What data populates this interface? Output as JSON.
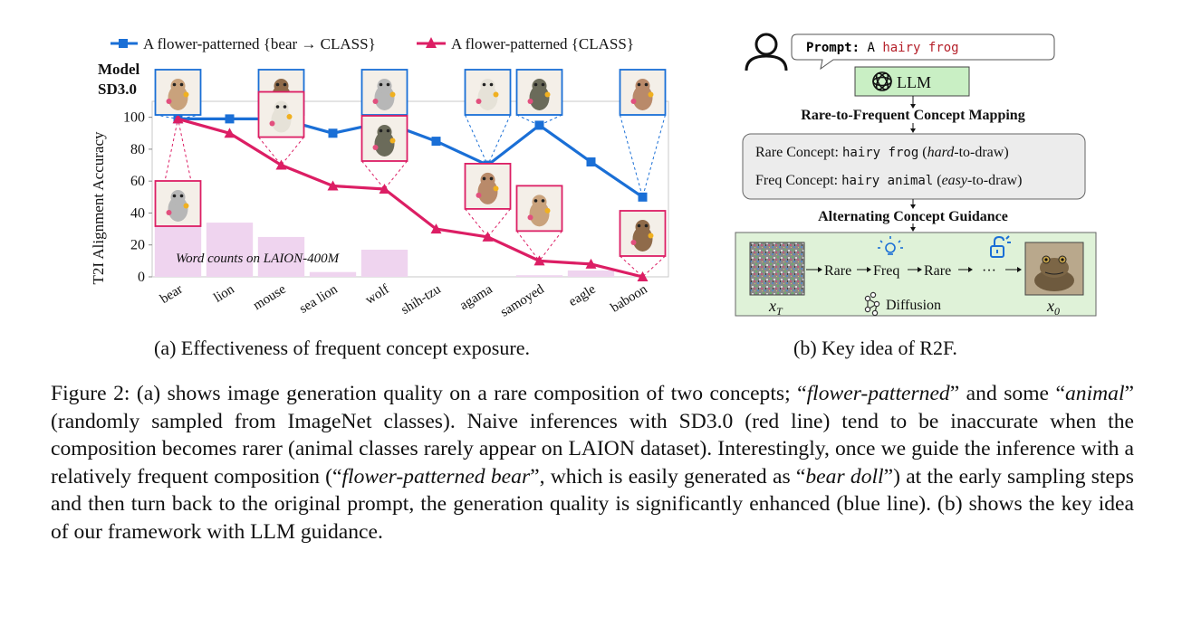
{
  "figure_a": {
    "legend": [
      {
        "label": "A flower-patterned {bear → CLASS}",
        "color": "#1a6fd6",
        "marker": "square"
      },
      {
        "label": "A flower-patterned {CLASS}",
        "color": "#dc1e64",
        "marker": "triangle"
      }
    ],
    "model_label_line1": "Model",
    "model_label_line2": "SD3.0",
    "bar_annotation": "Word counts on LAION-400M",
    "subcaption": "(a) Effectiveness of frequent concept exposure."
  },
  "chart_data": {
    "type": "line",
    "categories": [
      "bear",
      "lion",
      "mouse",
      "sea lion",
      "wolf",
      "shih-tzu",
      "agama",
      "samoyed",
      "eagle",
      "baboon"
    ],
    "ylabel": "T2I Alignment Accuracy",
    "ylim": [
      0,
      110
    ],
    "yticks": [
      0,
      20,
      40,
      60,
      80,
      100
    ],
    "series": [
      {
        "name": "A flower-patterned {bear → CLASS}",
        "color": "#1a6fd6",
        "values": [
          99,
          99,
          99,
          90,
          97,
          85,
          70,
          95,
          72,
          50
        ]
      },
      {
        "name": "A flower-patterned {CLASS}",
        "color": "#dc1e64",
        "values": [
          99,
          90,
          70,
          57,
          55,
          30,
          25,
          10,
          8,
          0
        ]
      }
    ],
    "word_count_bars": {
      "color": "#efd4ef",
      "values": [
        34,
        34,
        25,
        3,
        17,
        0,
        0,
        1,
        4,
        0
      ]
    },
    "blue_thumbnail_icons": [
      "bear-doll-icon",
      "flower-lion-icon",
      "flower-mouse-icon",
      "fox-icon",
      "flower-wolf-icon",
      "lizard-icon",
      "samoyed-icon",
      "monkey-icon"
    ],
    "pink_thumbnail_icons": [
      "bear-doll-icon",
      "mouse-photo-icon",
      "flower-wolf-icon",
      "lizard-photo-icon",
      "samoyed-photo-icon",
      "baboon-photo-icon"
    ]
  },
  "figure_b": {
    "prompt_label": "Prompt:",
    "prompt_prefix": "A",
    "prompt_object": "hairy frog",
    "llm_label": "LLM",
    "mapping_title": "Rare-to-Frequent Concept Mapping",
    "rare_label": "Rare Concept:",
    "rare_concept": "hairy frog",
    "rare_hint_pre": "(",
    "rare_hint_em": "hard",
    "rare_hint_post": "-to-draw)",
    "freq_label": "Freq Concept:",
    "freq_concept": "hairy animal",
    "freq_hint_pre": "(",
    "freq_hint_em": "easy",
    "freq_hint_post": "-to-draw)",
    "guidance_title": "Alternating Concept Guidance",
    "steps": [
      "Rare",
      "Freq",
      "Rare"
    ],
    "ellipsis": "···",
    "diffusion_label": "Diffusion",
    "xt_label": "x",
    "xt_sub": "T",
    "x0_label": "x",
    "x0_sub": "0",
    "colors": {
      "llm_box": "#c9efc4",
      "diffusion_panel": "#dff2d8",
      "concept_box": "#ececec",
      "mono_red": "#b5202a",
      "frame_blue": "#1a6fd6",
      "frame_pink": "#dc1e64"
    },
    "subcaption": "(b) Key idea of R2F."
  },
  "caption": {
    "s1": "Figure 2: (a) shows image generation quality on a rare composition of two concepts; “",
    "s1_em": "flower-patterned",
    "s2": "” and some “",
    "s2_em": "animal",
    "s3": "” (randomly sampled from ImageNet classes). Naive inferences with SD3.0 (red line) tend to be inaccurate when the composition becomes rarer (animal classes rarely appear on LAION dataset). Interestingly, once we guide the inference with a relatively frequent composition (“",
    "s3_em": "flower-patterned bear",
    "s4": "”, which is easily generated as “",
    "s4_em": "bear doll",
    "s5": "”) at the early sampling steps and then turn back to the original prompt, the generation quality is significantly enhanced (blue line). (b) shows the key idea of our framework with LLM guidance."
  }
}
